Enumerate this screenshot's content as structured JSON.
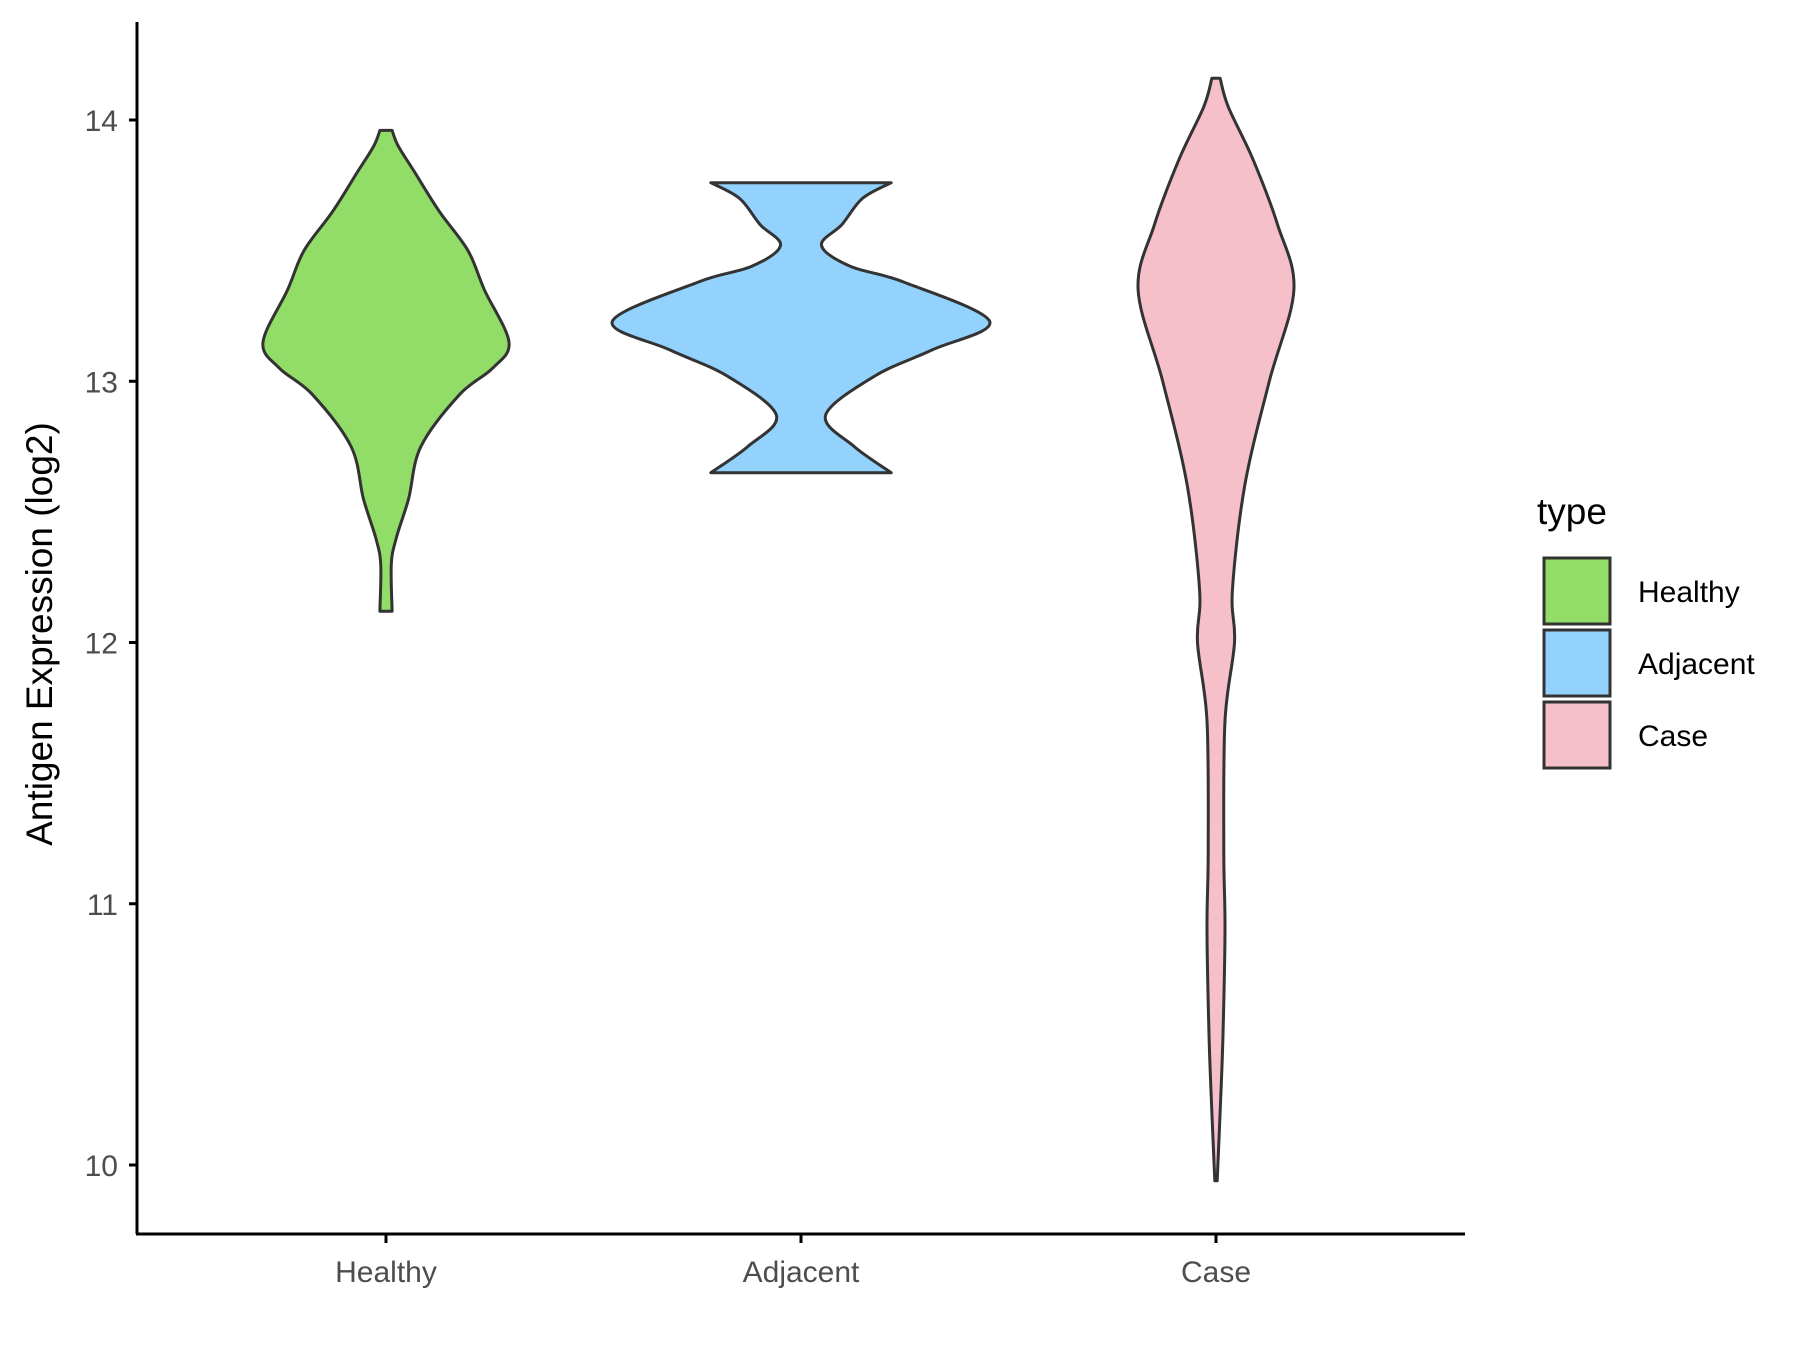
{
  "chart_data": {
    "type": "violin",
    "title": "",
    "xlabel": "",
    "ylabel": "Antigen Expression (log2)",
    "ylim": [
      9.7,
      14.4
    ],
    "yticks": [
      10,
      11,
      12,
      13,
      14
    ],
    "grid": false,
    "categories": [
      "Healthy",
      "Adjacent",
      "Case"
    ],
    "legend": {
      "title": "type",
      "position": "right",
      "entries": [
        "Healthy",
        "Adjacent",
        "Case"
      ]
    },
    "colors": {
      "Healthy": "#92dc68",
      "Adjacent": "#93d2fc",
      "Case": "#f6c0cb",
      "outline": "#333333"
    },
    "series": [
      {
        "name": "Healthy",
        "min": 12.12,
        "max": 13.96,
        "density_profile": [
          [
            12.12,
            0.015
          ],
          [
            12.3,
            0.013
          ],
          [
            12.4,
            0.025
          ],
          [
            12.55,
            0.055
          ],
          [
            12.75,
            0.085
          ],
          [
            12.95,
            0.18
          ],
          [
            13.05,
            0.26
          ],
          [
            13.15,
            0.3
          ],
          [
            13.35,
            0.24
          ],
          [
            13.5,
            0.2
          ],
          [
            13.65,
            0.13
          ],
          [
            13.8,
            0.07
          ],
          [
            13.9,
            0.03
          ],
          [
            13.96,
            0.015
          ]
        ]
      },
      {
        "name": "Adjacent",
        "min": 12.65,
        "max": 13.76,
        "density_profile": [
          [
            12.65,
            0.22
          ],
          [
            12.75,
            0.13
          ],
          [
            12.87,
            0.06
          ],
          [
            13.02,
            0.18
          ],
          [
            13.12,
            0.32
          ],
          [
            13.23,
            0.46
          ],
          [
            13.38,
            0.25
          ],
          [
            13.44,
            0.12
          ],
          [
            13.52,
            0.05
          ],
          [
            13.6,
            0.1
          ],
          [
            13.7,
            0.15
          ],
          [
            13.76,
            0.22
          ]
        ]
      },
      {
        "name": "Case",
        "min": 9.94,
        "max": 14.16,
        "density_profile": [
          [
            9.94,
            0.003
          ],
          [
            10.2,
            0.01
          ],
          [
            10.5,
            0.017
          ],
          [
            10.9,
            0.022
          ],
          [
            11.2,
            0.019
          ],
          [
            11.7,
            0.022
          ],
          [
            12.0,
            0.045
          ],
          [
            12.2,
            0.04
          ],
          [
            12.6,
            0.07
          ],
          [
            13.0,
            0.13
          ],
          [
            13.35,
            0.19
          ],
          [
            13.6,
            0.15
          ],
          [
            13.85,
            0.09
          ],
          [
            14.05,
            0.03
          ],
          [
            14.16,
            0.01
          ]
        ]
      }
    ]
  }
}
